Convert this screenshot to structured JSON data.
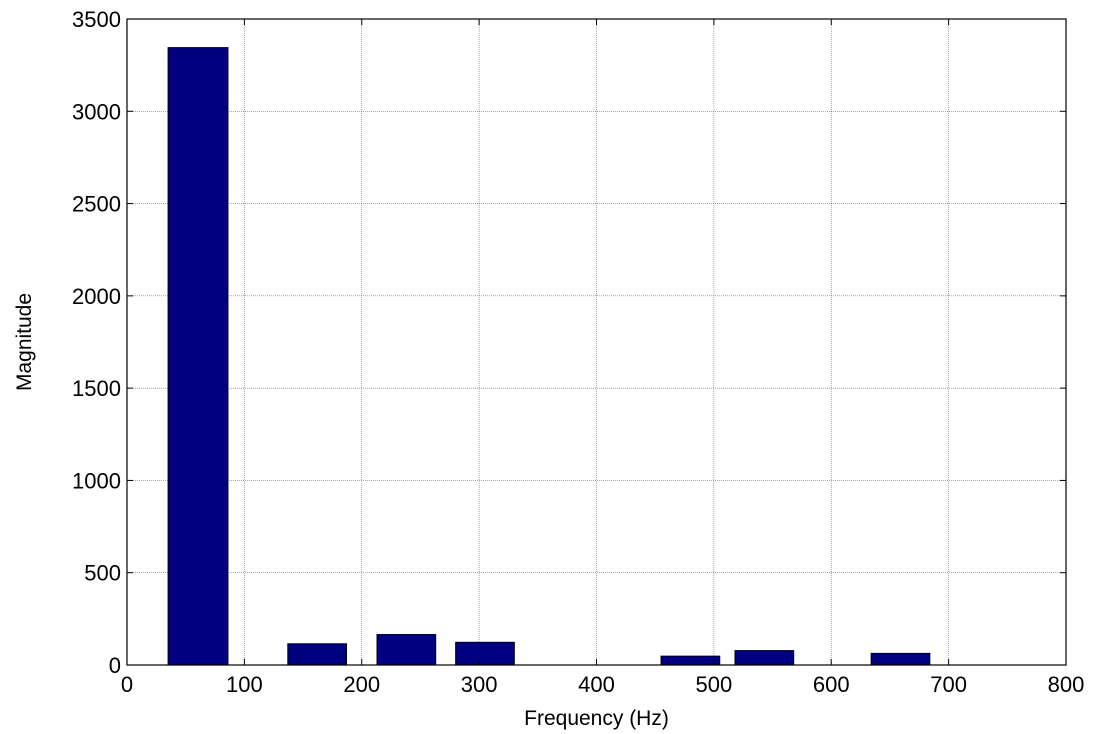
{
  "chart_data": {
    "type": "bar",
    "xlabel": "Frequency (Hz)",
    "ylabel": "Magnitude",
    "xlim": [
      0,
      800
    ],
    "ylim": [
      0,
      3500
    ],
    "xticks": [
      0,
      100,
      200,
      300,
      400,
      500,
      600,
      700,
      800
    ],
    "yticks": [
      0,
      500,
      1000,
      1500,
      2000,
      2500,
      3000,
      3500
    ],
    "grid": true,
    "bar_color": "#000080",
    "bars": [
      {
        "x_start": 35,
        "x_end": 86,
        "value": 3345
      },
      {
        "x_start": 137,
        "x_end": 187,
        "value": 115
      },
      {
        "x_start": 213,
        "x_end": 263,
        "value": 165
      },
      {
        "x_start": 280,
        "x_end": 330,
        "value": 123
      },
      {
        "x_start": 455,
        "x_end": 505,
        "value": 48
      },
      {
        "x_start": 518,
        "x_end": 568,
        "value": 78
      },
      {
        "x_start": 634,
        "x_end": 684,
        "value": 63
      }
    ]
  }
}
